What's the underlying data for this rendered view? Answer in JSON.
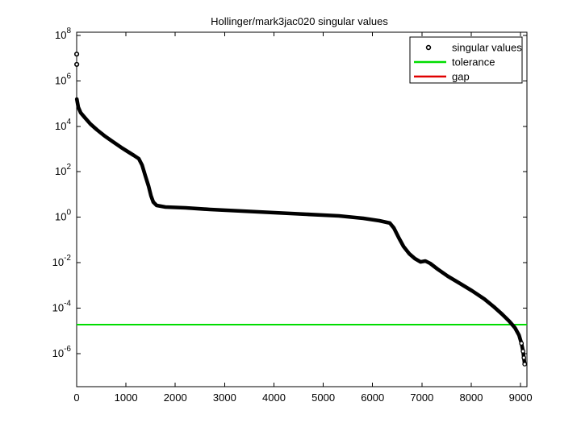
{
  "figure": {
    "background": "#ffffff"
  },
  "chart_data": {
    "type": "scatter",
    "title": "Hollinger/mark3jac020 singular values",
    "xlabel": "",
    "ylabel": "",
    "grid": false,
    "x_axis": {
      "min": 0,
      "max": 9129,
      "ticks": [
        0,
        1000,
        2000,
        3000,
        4000,
        5000,
        6000,
        7000,
        8000,
        9000
      ]
    },
    "y_axis": {
      "scale": "log10",
      "max_log10": 8.14,
      "min_log10": -7.46,
      "tick_exponents": [
        8,
        6,
        4,
        2,
        0,
        -2,
        -4,
        -6
      ],
      "tick_labels": [
        "10^8",
        "10^6",
        "10^4",
        "10^2",
        "10^0",
        "10^-2",
        "10^-4",
        "10^-6"
      ]
    },
    "legend": {
      "position": "top-right",
      "border": true,
      "items": [
        {
          "label": "singular values",
          "type": "marker",
          "color": "#000000"
        },
        {
          "label": "tolerance",
          "type": "line",
          "color": "#00dd00"
        },
        {
          "label": "gap",
          "type": "line",
          "color": "#e00000"
        }
      ]
    },
    "series": [
      {
        "name": "singular values",
        "color": "#000000",
        "marker": "open-circle",
        "isolated_points": [
          [
            1,
            15000000.0
          ],
          [
            2,
            5300000.0
          ]
        ],
        "curve_breakpoints": [
          [
            3,
            158000
          ],
          [
            33,
            69800
          ],
          [
            82,
            39400
          ],
          [
            164,
            24200
          ],
          [
            278,
            12600
          ],
          [
            409,
            7100
          ],
          [
            573,
            3690
          ],
          [
            736,
            2080
          ],
          [
            900,
            1180
          ],
          [
            1031,
            783
          ],
          [
            1162,
            520
          ],
          [
            1260,
            375
          ],
          [
            1326,
            195
          ],
          [
            1391,
            67.6
          ],
          [
            1457,
            23.4
          ],
          [
            1506,
            8.8
          ],
          [
            1555,
            4.6
          ],
          [
            1621,
            3.3
          ],
          [
            1800,
            2.8
          ],
          [
            2209,
            2.58
          ],
          [
            2700,
            2.19
          ],
          [
            3355,
            1.86
          ],
          [
            4010,
            1.58
          ],
          [
            4664,
            1.34
          ],
          [
            5319,
            1.14
          ],
          [
            5810,
            0.89
          ],
          [
            6137,
            0.7
          ],
          [
            6350,
            0.55
          ],
          [
            6432,
            0.335
          ],
          [
            6530,
            0.126
          ],
          [
            6628,
            0.0512
          ],
          [
            6743,
            0.0245
          ],
          [
            6857,
            0.015
          ],
          [
            6972,
            0.0108
          ],
          [
            7070,
            0.0118
          ],
          [
            7168,
            0.0092
          ],
          [
            7316,
            0.0052
          ],
          [
            7528,
            0.0025
          ],
          [
            7774,
            0.0012
          ],
          [
            8019,
            0.00057
          ],
          [
            8265,
            0.00025
          ],
          [
            8461,
            0.000112
          ],
          [
            8625,
            5.4e-05
          ],
          [
            8772,
            2.6e-05
          ],
          [
            8887,
            1.34e-05
          ],
          [
            8969,
            6.4e-06
          ],
          [
            9018,
            2.8e-06
          ],
          [
            9050,
            1.26e-06
          ],
          [
            9067,
            6.5e-07
          ],
          [
            9083,
            3.4e-07
          ]
        ]
      },
      {
        "name": "tolerance",
        "color": "#00dd00",
        "style": "hline",
        "value": 1.86e-05
      }
    ]
  }
}
